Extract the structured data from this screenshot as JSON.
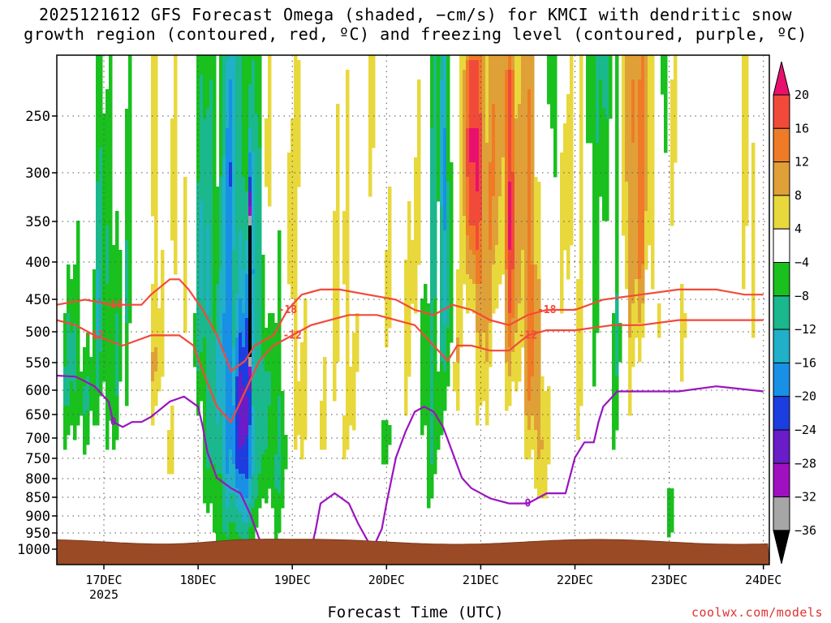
{
  "title": {
    "line1": "2025121612 GFS Forecast Omega (shaded, −cm/s) for KMCI with dendritic snow",
    "line2": "growth region (contoured, red, ºC) and freezing level (contoured, purple, ºC)"
  },
  "xlabel": "Forecast Time (UTC)",
  "credit": "coolwx.com/models",
  "chart_data": {
    "type": "heatmap",
    "variable": "Omega (shaded, −cm/s)",
    "y_axis": {
      "ticks": [
        250,
        300,
        350,
        400,
        450,
        500,
        550,
        600,
        650,
        700,
        750,
        800,
        850,
        900,
        950,
        1000
      ]
    },
    "x_axis": {
      "ticks": [
        "17DEC",
        "18DEC",
        "19DEC",
        "20DEC",
        "21DEC",
        "22DEC",
        "23DEC",
        "24DEC"
      ],
      "year_label": "2025"
    },
    "colorbar": {
      "tick_labels": [
        "20",
        "16",
        "12",
        "8",
        "4",
        "−4",
        "−8",
        "−12",
        "−16",
        "−20",
        "−24",
        "−28",
        "−32",
        "−36"
      ],
      "bins": [
        {
          "color": "#e8106e"
        },
        {
          "color": "#f24a3a"
        },
        {
          "color": "#f07b26"
        },
        {
          "color": "#e0a038"
        },
        {
          "color": "#e8d83c"
        },
        {
          "color": "#ffffff"
        },
        {
          "color": "#19c01e"
        },
        {
          "color": "#1ab88c"
        },
        {
          "color": "#20b0c8"
        },
        {
          "color": "#1890e6"
        },
        {
          "color": "#1c3ee0"
        },
        {
          "color": "#6a1cc8"
        },
        {
          "color": "#a010c0"
        },
        {
          "color": "#a6a6a6"
        },
        {
          "color": "#000000"
        }
      ]
    },
    "contours": [
      {
        "label": "-18",
        "color": "#f24a3a",
        "level": -18,
        "points": [
          [
            0,
            0.49
          ],
          [
            0.3,
            0.48
          ],
          [
            0.6,
            0.49
          ],
          [
            0.9,
            0.49
          ],
          [
            1.0,
            0.47
          ],
          [
            1.2,
            0.44
          ],
          [
            1.3,
            0.44
          ],
          [
            1.4,
            0.46
          ],
          [
            1.55,
            0.5
          ],
          [
            1.7,
            0.55
          ],
          [
            1.85,
            0.62
          ],
          [
            2.0,
            0.6
          ],
          [
            2.1,
            0.57
          ],
          [
            2.3,
            0.55
          ],
          [
            2.45,
            0.5
          ],
          [
            2.6,
            0.47
          ],
          [
            2.8,
            0.46
          ],
          [
            3.0,
            0.46
          ],
          [
            3.3,
            0.47
          ],
          [
            3.6,
            0.48
          ],
          [
            3.8,
            0.5
          ],
          [
            4.0,
            0.51
          ],
          [
            4.2,
            0.49
          ],
          [
            4.4,
            0.5
          ],
          [
            4.6,
            0.52
          ],
          [
            4.8,
            0.53
          ],
          [
            5.0,
            0.51
          ],
          [
            5.2,
            0.5
          ],
          [
            5.5,
            0.5
          ],
          [
            5.8,
            0.48
          ],
          [
            6.2,
            0.47
          ],
          [
            6.6,
            0.46
          ],
          [
            7.0,
            0.46
          ],
          [
            7.3,
            0.47
          ],
          [
            7.5,
            0.47
          ]
        ]
      },
      {
        "label": "-12",
        "color": "#f24a3a",
        "level": -12,
        "points": [
          [
            0,
            0.52
          ],
          [
            0.2,
            0.53
          ],
          [
            0.4,
            0.55
          ],
          [
            0.7,
            0.57
          ],
          [
            1.0,
            0.55
          ],
          [
            1.3,
            0.55
          ],
          [
            1.45,
            0.57
          ],
          [
            1.55,
            0.62
          ],
          [
            1.7,
            0.69
          ],
          [
            1.85,
            0.72
          ],
          [
            2.0,
            0.66
          ],
          [
            2.15,
            0.6
          ],
          [
            2.3,
            0.57
          ],
          [
            2.5,
            0.55
          ],
          [
            2.7,
            0.53
          ],
          [
            2.9,
            0.52
          ],
          [
            3.1,
            0.51
          ],
          [
            3.4,
            0.51
          ],
          [
            3.6,
            0.52
          ],
          [
            3.8,
            0.53
          ],
          [
            4.0,
            0.57
          ],
          [
            4.15,
            0.6
          ],
          [
            4.25,
            0.57
          ],
          [
            4.4,
            0.57
          ],
          [
            4.6,
            0.58
          ],
          [
            4.8,
            0.58
          ],
          [
            5.0,
            0.55
          ],
          [
            5.2,
            0.54
          ],
          [
            5.5,
            0.54
          ],
          [
            5.9,
            0.53
          ],
          [
            6.2,
            0.53
          ],
          [
            6.6,
            0.52
          ],
          [
            7.0,
            0.52
          ],
          [
            7.5,
            0.52
          ]
        ]
      },
      {
        "label": "0",
        "color": "#9a14c0",
        "level": 0,
        "points": [
          [
            0,
            0.629
          ],
          [
            0.2,
            0.631
          ],
          [
            0.4,
            0.65
          ],
          [
            0.55,
            0.68
          ],
          [
            0.6,
            0.72
          ],
          [
            0.7,
            0.73
          ],
          [
            0.8,
            0.72
          ],
          [
            0.9,
            0.72
          ],
          [
            1.0,
            0.71
          ],
          [
            1.2,
            0.68
          ],
          [
            1.35,
            0.67
          ],
          [
            1.5,
            0.69
          ],
          [
            1.55,
            0.73
          ],
          [
            1.6,
            0.78
          ],
          [
            1.7,
            0.83
          ],
          [
            1.85,
            0.85
          ],
          [
            1.95,
            0.86
          ],
          [
            2.05,
            0.9
          ],
          [
            2.15,
            0.95
          ],
          [
            2.2,
            0.97
          ],
          [
            2.4,
            0.97
          ],
          [
            2.6,
            0.97
          ],
          [
            2.7,
            0.97
          ],
          [
            2.75,
            0.93
          ],
          [
            2.8,
            0.88
          ],
          [
            2.95,
            0.86
          ],
          [
            3.1,
            0.88
          ],
          [
            3.2,
            0.92
          ],
          [
            3.35,
            0.97
          ],
          [
            3.45,
            0.93
          ],
          [
            3.5,
            0.88
          ],
          [
            3.6,
            0.79
          ],
          [
            3.7,
            0.74
          ],
          [
            3.8,
            0.7
          ],
          [
            3.9,
            0.69
          ],
          [
            4.0,
            0.7
          ],
          [
            4.1,
            0.73
          ],
          [
            4.2,
            0.78
          ],
          [
            4.3,
            0.83
          ],
          [
            4.4,
            0.85
          ],
          [
            4.6,
            0.87
          ],
          [
            4.8,
            0.88
          ],
          [
            5.0,
            0.88
          ],
          [
            5.2,
            0.86
          ],
          [
            5.4,
            0.86
          ],
          [
            5.5,
            0.79
          ],
          [
            5.6,
            0.76
          ],
          [
            5.7,
            0.76
          ],
          [
            5.75,
            0.72
          ],
          [
            5.8,
            0.69
          ],
          [
            5.95,
            0.66
          ],
          [
            6.2,
            0.66
          ],
          [
            6.6,
            0.66
          ],
          [
            7.0,
            0.65
          ],
          [
            7.5,
            0.66
          ]
        ]
      }
    ],
    "freezing_label_positions_in_data_units": "see contours"
  }
}
